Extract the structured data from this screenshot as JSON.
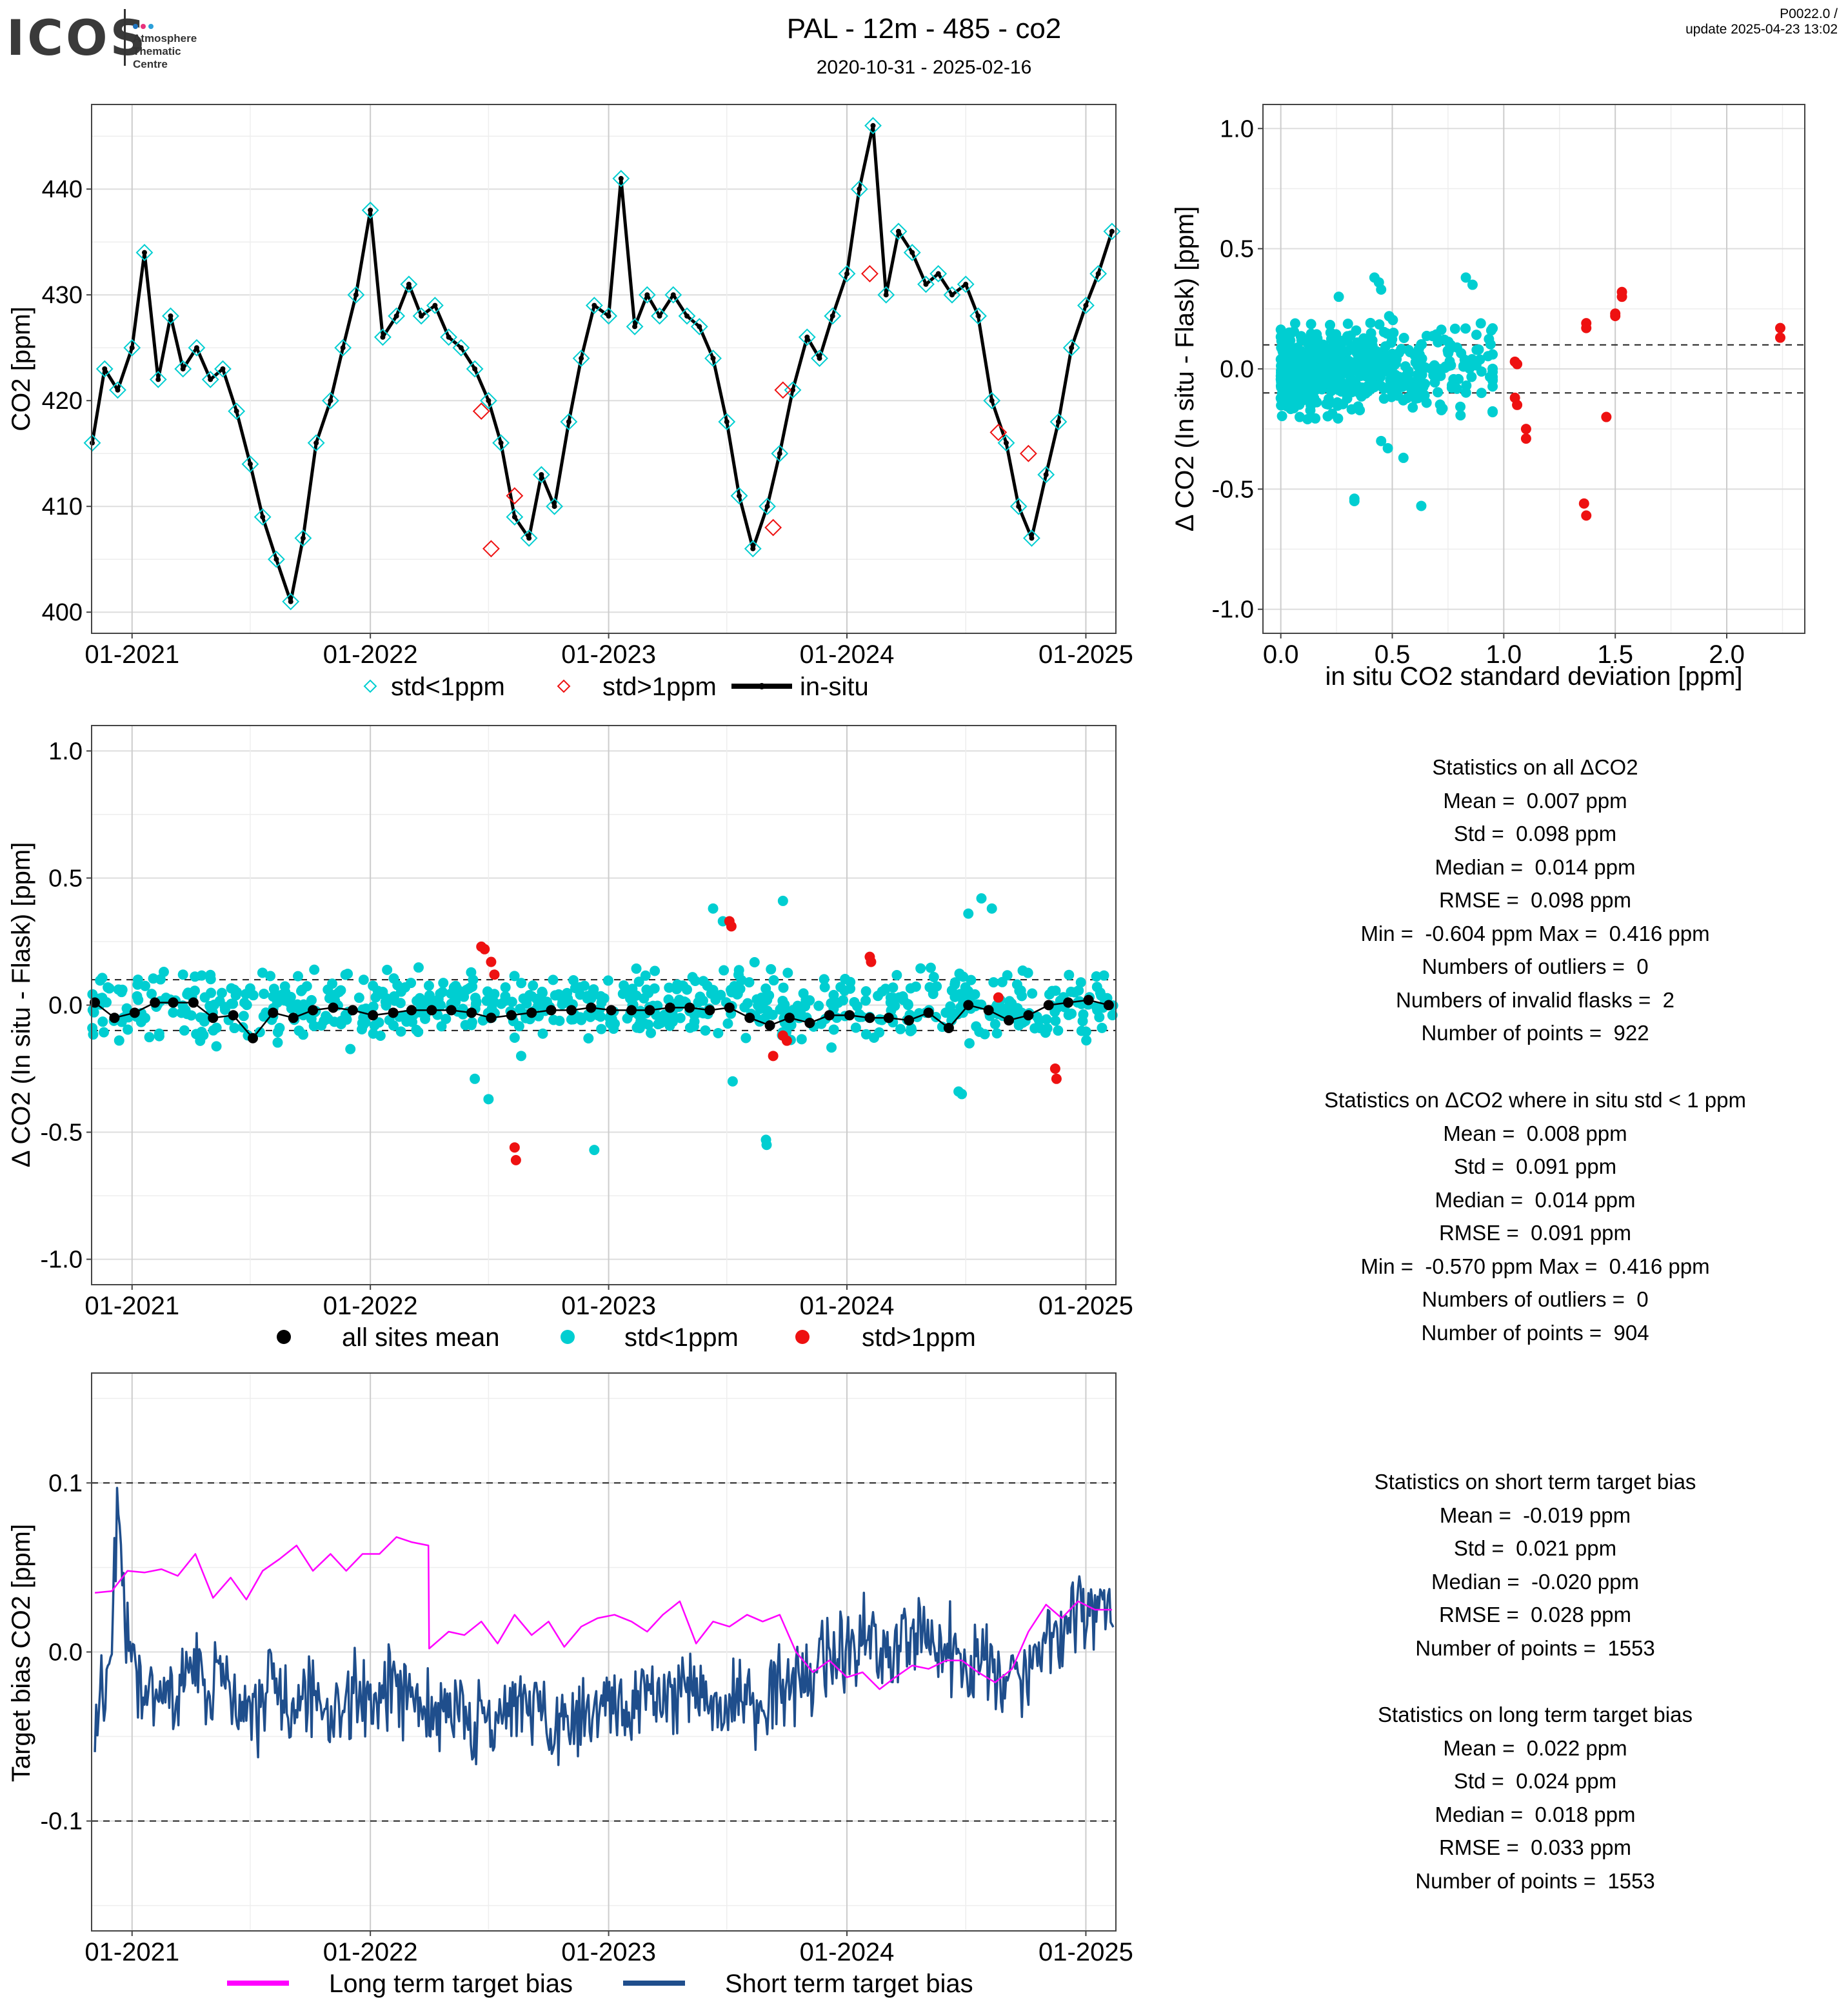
{
  "header": {
    "logo": "ICOS",
    "logo_sub": [
      "Atmosphere",
      "Thematic",
      "Centre"
    ],
    "title": "PAL - 12m - 485 - co2",
    "dates": "2020-10-31 - 2025-02-16",
    "version_line1": "P0022.0 /",
    "version_line2": "update  2025-04-23 13:02"
  },
  "colors": {
    "cyan": "#00CED1",
    "red": "#EE1111",
    "black": "#000000",
    "magenta": "#FF00FF",
    "navy": "#1F4E8C"
  },
  "chart_data": [
    {
      "id": "co2-timeseries",
      "type": "line",
      "ylabel": "CO2 [ppm]",
      "xlabel": "",
      "xlim": [
        "2020-10-31",
        "2025-02-16"
      ],
      "ylim": [
        398,
        448
      ],
      "yticks": [
        400,
        410,
        420,
        430,
        440
      ],
      "xtick_labels": [
        "01-2021",
        "01-2022",
        "01-2023",
        "01-2024",
        "01-2025"
      ],
      "grid": true,
      "legend": {
        "placement": "bottom",
        "entries": [
          "std<1ppm",
          "std>1ppm",
          "in-situ"
        ]
      },
      "series": [
        {
          "name": "in-situ",
          "x": [
            "2020-11-01",
            "2020-11-20",
            "2020-12-10",
            "2021-01-01",
            "2021-01-20",
            "2021-02-10",
            "2021-03-01",
            "2021-03-20",
            "2021-04-10",
            "2021-05-01",
            "2021-05-20",
            "2021-06-10",
            "2021-07-01",
            "2021-07-20",
            "2021-08-10",
            "2021-09-01",
            "2021-09-20",
            "2021-10-10",
            "2021-11-01",
            "2021-11-20",
            "2021-12-10",
            "2022-01-01",
            "2022-01-20",
            "2022-02-10",
            "2022-03-01",
            "2022-03-20",
            "2022-04-10",
            "2022-05-01",
            "2022-05-20",
            "2022-06-10",
            "2022-07-01",
            "2022-07-20",
            "2022-08-10",
            "2022-09-01",
            "2022-09-20",
            "2022-10-10",
            "2022-11-01",
            "2022-11-20",
            "2022-12-10",
            "2023-01-01",
            "2023-01-20",
            "2023-02-10",
            "2023-03-01",
            "2023-03-20",
            "2023-04-10",
            "2023-05-01",
            "2023-05-20",
            "2023-06-10",
            "2023-07-01",
            "2023-07-20",
            "2023-08-10",
            "2023-09-01",
            "2023-09-20",
            "2023-10-10",
            "2023-11-01",
            "2023-11-20",
            "2023-12-10",
            "2024-01-01",
            "2024-01-20",
            "2024-02-10",
            "2024-03-01",
            "2024-03-20",
            "2024-04-10",
            "2024-05-01",
            "2024-05-20",
            "2024-06-10",
            "2024-07-01",
            "2024-07-20",
            "2024-08-10",
            "2024-09-01",
            "2024-09-20",
            "2024-10-10",
            "2024-11-01",
            "2024-11-20",
            "2024-12-10",
            "2025-01-01",
            "2025-01-20",
            "2025-02-10"
          ],
          "values": [
            416,
            423,
            421,
            425,
            434,
            422,
            428,
            423,
            425,
            422,
            423,
            419,
            414,
            409,
            405,
            401,
            407,
            416,
            420,
            425,
            430,
            438,
            426,
            428,
            431,
            428,
            429,
            426,
            425,
            423,
            420,
            416,
            409,
            407,
            413,
            410,
            418,
            424,
            429,
            428,
            441,
            427,
            430,
            428,
            430,
            428,
            427,
            424,
            418,
            411,
            406,
            410,
            415,
            421,
            426,
            424,
            428,
            432,
            440,
            446,
            430,
            436,
            434,
            431,
            432,
            430,
            431,
            428,
            420,
            416,
            410,
            407,
            413,
            418,
            425,
            429,
            432,
            436
          ]
        },
        {
          "name": "std>1ppm",
          "x": [
            "2022-06-20",
            "2022-07-05",
            "2022-08-10",
            "2023-09-10",
            "2023-09-25",
            "2024-02-05",
            "2024-08-20",
            "2024-10-05"
          ],
          "values": [
            419,
            406,
            411,
            408,
            421,
            432,
            417,
            415
          ]
        }
      ]
    },
    {
      "id": "delta-vs-std-scatter",
      "type": "scatter",
      "xlabel": "in situ CO2 standard deviation [ppm]",
      "ylabel": "Δ CO2 (In situ - Flask) [ppm]",
      "xlim": [
        -0.08,
        2.35
      ],
      "ylim": [
        -1.1,
        1.1
      ],
      "xticks": [
        0.0,
        0.5,
        1.0,
        1.5,
        2.0
      ],
      "yticks": [
        -1.0,
        -0.5,
        0.0,
        0.5,
        1.0
      ],
      "xtick_labels": [
        "0.0",
        "0.5",
        "1.0",
        "1.5",
        "2.0"
      ],
      "ytick_labels": [
        "-1.0",
        "-0.5",
        "0.0",
        "0.5",
        "1.0"
      ],
      "reference_lines": [
        0.1,
        -0.1
      ],
      "grid": true,
      "series": [
        {
          "name": "std<1ppm",
          "x": [
            0.42,
            0.44,
            0.83,
            0.86,
            0.45,
            0.26,
            0.33,
            0.33,
            0.63,
            0.55,
            0.48,
            0.45,
            0.9,
            0.95
          ],
          "y": [
            0.38,
            0.36,
            0.38,
            0.35,
            0.33,
            0.3,
            -0.54,
            -0.55,
            -0.57,
            -0.37,
            -0.33,
            -0.3,
            -0.1,
            -0.18
          ]
        },
        {
          "name": "std>1ppm",
          "x": [
            1.05,
            1.06,
            1.05,
            1.06,
            1.1,
            1.1,
            1.37,
            1.37,
            1.36,
            1.37,
            1.46,
            1.5,
            1.5,
            1.53,
            1.53,
            2.24,
            2.24
          ],
          "y": [
            0.03,
            0.02,
            -0.12,
            -0.15,
            -0.25,
            -0.29,
            0.19,
            0.17,
            -0.56,
            -0.61,
            -0.2,
            0.22,
            0.23,
            0.3,
            0.32,
            0.17,
            0.13
          ]
        }
      ]
    },
    {
      "id": "delta-timeseries",
      "type": "scatter",
      "ylabel": "Δ CO2 (In situ - Flask) [ppm]",
      "xlabel": "",
      "xlim": [
        "2020-10-31",
        "2025-02-16"
      ],
      "ylim": [
        -1.1,
        1.1
      ],
      "yticks": [
        -1.0,
        -0.5,
        0.0,
        0.5,
        1.0
      ],
      "ytick_labels": [
        "-1.0",
        "-0.5",
        "0.0",
        "0.5",
        "1.0"
      ],
      "xtick_labels": [
        "01-2021",
        "01-2022",
        "01-2023",
        "01-2024",
        "01-2025"
      ],
      "reference_lines": [
        0.1,
        -0.1
      ],
      "grid": true,
      "legend": {
        "placement": "bottom",
        "entries": [
          "all sites mean",
          "std<1ppm",
          "std>1ppm"
        ]
      },
      "series": [
        {
          "name": "all sites mean",
          "x": [
            "2020-11-05",
            "2020-12-05",
            "2021-01-05",
            "2021-02-05",
            "2021-03-05",
            "2021-04-05",
            "2021-05-05",
            "2021-06-05",
            "2021-07-05",
            "2021-08-05",
            "2021-09-05",
            "2021-10-05",
            "2021-11-05",
            "2021-12-05",
            "2022-01-05",
            "2022-02-05",
            "2022-03-05",
            "2022-04-05",
            "2022-05-05",
            "2022-06-05",
            "2022-07-05",
            "2022-08-05",
            "2022-09-05",
            "2022-10-05",
            "2022-11-05",
            "2022-12-05",
            "2023-01-05",
            "2023-02-05",
            "2023-03-05",
            "2023-04-05",
            "2023-05-05",
            "2023-06-05",
            "2023-07-05",
            "2023-08-05",
            "2023-09-05",
            "2023-10-05",
            "2023-11-05",
            "2023-12-05",
            "2024-01-05",
            "2024-02-05",
            "2024-03-05",
            "2024-04-05",
            "2024-05-05",
            "2024-06-05",
            "2024-07-05",
            "2024-08-05",
            "2024-09-05",
            "2024-10-05",
            "2024-11-05",
            "2024-12-05",
            "2025-01-05",
            "2025-02-05"
          ],
          "values": [
            0.01,
            -0.05,
            -0.03,
            0.01,
            0.01,
            0.01,
            -0.05,
            -0.04,
            -0.13,
            -0.03,
            -0.05,
            -0.02,
            -0.01,
            -0.02,
            -0.04,
            -0.03,
            -0.02,
            -0.02,
            -0.02,
            -0.03,
            -0.05,
            -0.04,
            -0.03,
            -0.02,
            -0.02,
            -0.01,
            -0.02,
            -0.02,
            -0.02,
            -0.01,
            -0.01,
            -0.02,
            -0.01,
            -0.05,
            -0.08,
            -0.05,
            -0.07,
            -0.04,
            -0.04,
            -0.05,
            -0.05,
            -0.06,
            -0.03,
            -0.09,
            0.0,
            -0.02,
            -0.06,
            -0.04,
            0.0,
            0.01,
            0.02,
            0.0
          ]
        },
        {
          "name": "std<1ppm",
          "x": [
            "2021-01-10",
            "2021-03-20",
            "2022-06-10",
            "2022-07-01",
            "2022-08-20",
            "2022-12-10",
            "2023-06-10",
            "2023-06-25",
            "2023-07-10",
            "2023-08-30",
            "2023-08-31",
            "2023-09-25",
            "2024-06-25",
            "2024-07-05",
            "2024-06-20",
            "2024-07-25",
            "2024-08-10"
          ],
          "values": [
            0.1,
            0.12,
            -0.29,
            -0.37,
            -0.2,
            -0.57,
            0.38,
            0.33,
            -0.3,
            -0.53,
            -0.55,
            0.41,
            -0.35,
            0.36,
            -0.34,
            0.42,
            0.38
          ]
        },
        {
          "name": "std>1ppm",
          "x": [
            "2022-06-20",
            "2022-06-25",
            "2022-07-05",
            "2022-07-10",
            "2022-08-10",
            "2022-08-12",
            "2023-07-05",
            "2023-07-08",
            "2023-09-10",
            "2023-09-25",
            "2023-10-01",
            "2024-02-05",
            "2024-02-07",
            "2024-08-20",
            "2024-11-15",
            "2024-11-17"
          ],
          "values": [
            0.23,
            0.22,
            0.17,
            0.12,
            -0.56,
            -0.61,
            0.33,
            0.31,
            -0.2,
            -0.12,
            -0.14,
            0.19,
            0.17,
            0.03,
            -0.25,
            -0.29
          ]
        }
      ]
    },
    {
      "id": "target-bias",
      "type": "line",
      "ylabel": "Target bias CO2 [ppm]",
      "xlabel": "",
      "xlim": [
        "2020-10-31",
        "2025-02-16"
      ],
      "ylim": [
        -0.165,
        0.165
      ],
      "yticks": [
        -0.1,
        0.0,
        0.1
      ],
      "ytick_labels": [
        "-0.1",
        "0.0",
        "0.1"
      ],
      "xtick_labels": [
        "01-2021",
        "01-2022",
        "01-2023",
        "01-2024",
        "01-2025"
      ],
      "reference_lines": [
        0.1,
        -0.1
      ],
      "grid": true,
      "legend": {
        "placement": "bottom",
        "entries": [
          "Long term target bias",
          "Short term target bias"
        ]
      },
      "series": [
        {
          "name": "Long term target bias",
          "x": [
            "2020-11-05",
            "2020-12-01",
            "2020-12-25",
            "2021-01-20",
            "2021-02-15",
            "2021-03-12",
            "2021-04-08",
            "2021-05-05",
            "2021-06-01",
            "2021-06-25",
            "2021-07-20",
            "2021-08-15",
            "2021-09-10",
            "2021-10-05",
            "2021-11-01",
            "2021-11-25",
            "2021-12-20",
            "2022-01-15",
            "2022-02-10",
            "2022-03-05",
            "2022-03-31",
            "2022-04-01",
            "2022-05-01",
            "2022-05-25",
            "2022-06-20",
            "2022-07-15",
            "2022-08-10",
            "2022-09-05",
            "2022-10-01",
            "2022-10-25",
            "2022-11-20",
            "2022-12-15",
            "2023-01-10",
            "2023-02-05",
            "2023-03-01",
            "2023-03-25",
            "2023-04-20",
            "2023-05-15",
            "2023-06-10",
            "2023-07-05",
            "2023-08-01",
            "2023-08-25",
            "2023-09-20",
            "2023-10-15",
            "2023-11-10",
            "2023-12-05",
            "2024-01-01",
            "2024-01-25",
            "2024-02-20",
            "2024-03-15",
            "2024-04-10",
            "2024-05-05",
            "2024-06-01",
            "2024-06-25",
            "2024-07-20",
            "2024-08-15",
            "2024-09-10",
            "2024-10-05",
            "2024-11-01",
            "2024-11-25",
            "2024-12-20",
            "2025-01-15",
            "2025-02-10"
          ],
          "values": [
            0.035,
            0.036,
            0.048,
            0.047,
            0.049,
            0.045,
            0.058,
            0.032,
            0.044,
            0.031,
            0.048,
            0.055,
            0.063,
            0.048,
            0.058,
            0.048,
            0.058,
            0.058,
            0.068,
            0.065,
            0.063,
            0.002,
            0.012,
            0.01,
            0.018,
            0.005,
            0.022,
            0.01,
            0.018,
            0.003,
            0.015,
            0.02,
            0.022,
            0.018,
            0.012,
            0.022,
            0.03,
            0.005,
            0.018,
            0.015,
            0.022,
            0.018,
            0.022,
            0.0,
            -0.012,
            -0.005,
            -0.015,
            -0.012,
            -0.022,
            -0.015,
            -0.008,
            -0.01,
            -0.005,
            -0.005,
            -0.012,
            -0.018,
            -0.01,
            0.012,
            0.028,
            0.02,
            0.03,
            0.025,
            0.025
          ]
        },
        {
          "name": "Short term target bias",
          "x": [
            "2020-11-05",
            "2020-11-25",
            "2020-12-10",
            "2020-12-20",
            "2021-01-05",
            "2021-01-25",
            "2021-02-15",
            "2021-03-10",
            "2021-04-01",
            "2021-04-25",
            "2021-05-20",
            "2021-06-15",
            "2021-07-10",
            "2021-08-05",
            "2021-09-01",
            "2021-09-25",
            "2021-10-20",
            "2021-11-15",
            "2021-12-10",
            "2022-01-05",
            "2022-02-01",
            "2022-02-25",
            "2022-03-20",
            "2022-04-15",
            "2022-05-10",
            "2022-06-05",
            "2022-07-01",
            "2022-07-25",
            "2022-08-20",
            "2022-09-15",
            "2022-10-10",
            "2022-11-05",
            "2022-12-01",
            "2022-12-25",
            "2023-01-20",
            "2023-02-15",
            "2023-03-10",
            "2023-04-05",
            "2023-05-01",
            "2023-05-25",
            "2023-06-20",
            "2023-07-15",
            "2023-08-10",
            "2023-09-05",
            "2023-10-01",
            "2023-10-25",
            "2023-11-20",
            "2023-12-15",
            "2024-01-10",
            "2024-02-05",
            "2024-03-01",
            "2024-03-25",
            "2024-04-20",
            "2024-05-15",
            "2024-06-10",
            "2024-07-05",
            "2024-08-01",
            "2024-08-25",
            "2024-09-20",
            "2024-10-15",
            "2024-11-10",
            "2024-12-05",
            "2025-01-01",
            "2025-01-25",
            "2025-02-10"
          ],
          "values": [
            -0.03,
            -0.02,
            0.09,
            0.02,
            -0.01,
            -0.03,
            -0.02,
            -0.03,
            -0.01,
            -0.025,
            -0.02,
            -0.03,
            -0.035,
            -0.02,
            -0.03,
            -0.025,
            -0.04,
            -0.03,
            -0.025,
            -0.035,
            -0.02,
            -0.03,
            -0.025,
            -0.04,
            -0.03,
            -0.045,
            -0.04,
            -0.035,
            -0.04,
            -0.03,
            -0.045,
            -0.035,
            -0.04,
            -0.03,
            -0.035,
            -0.03,
            -0.025,
            -0.03,
            -0.02,
            -0.025,
            -0.03,
            -0.02,
            -0.03,
            -0.025,
            -0.02,
            -0.015,
            -0.01,
            0.0,
            0.005,
            0.01,
            0.0,
            0.005,
            0.01,
            0.005,
            0.0,
            -0.01,
            -0.005,
            -0.02,
            -0.015,
            -0.005,
            0.01,
            0.02,
            0.025,
            0.03,
            0.015
          ]
        }
      ]
    }
  ],
  "stats_all": [
    "Statistics on all ΔCO2",
    "Mean =  0.007 ppm",
    "Std =  0.098 ppm",
    "Median =  0.014 ppm",
    "RMSE =  0.098 ppm",
    "Min =  -0.604 ppm Max =  0.416 ppm",
    "Numbers of outliers =  0",
    "Numbers of invalid flasks =  2",
    "Number of points =  922"
  ],
  "stats_std1": [
    "Statistics on ΔCO2 where in situ std < 1 ppm",
    "Mean =  0.008 ppm",
    "Std =  0.091 ppm",
    "Median =  0.014 ppm",
    "RMSE =  0.091 ppm",
    "Min =  -0.570 ppm Max =  0.416 ppm",
    "Numbers of outliers =  0",
    "Number of points =  904"
  ],
  "stats_short": [
    "Statistics on short term target bias",
    "Mean =  -0.019 ppm",
    "Std =  0.021 ppm",
    "Median =  -0.020 ppm",
    "RMSE =  0.028 ppm",
    "Number of points =  1553"
  ],
  "stats_long": [
    "Statistics on long term target bias",
    "Mean =  0.022 ppm",
    "Std =  0.024 ppm",
    "Median =  0.018 ppm",
    "RMSE =  0.033 ppm",
    "Number of points =  1553"
  ]
}
